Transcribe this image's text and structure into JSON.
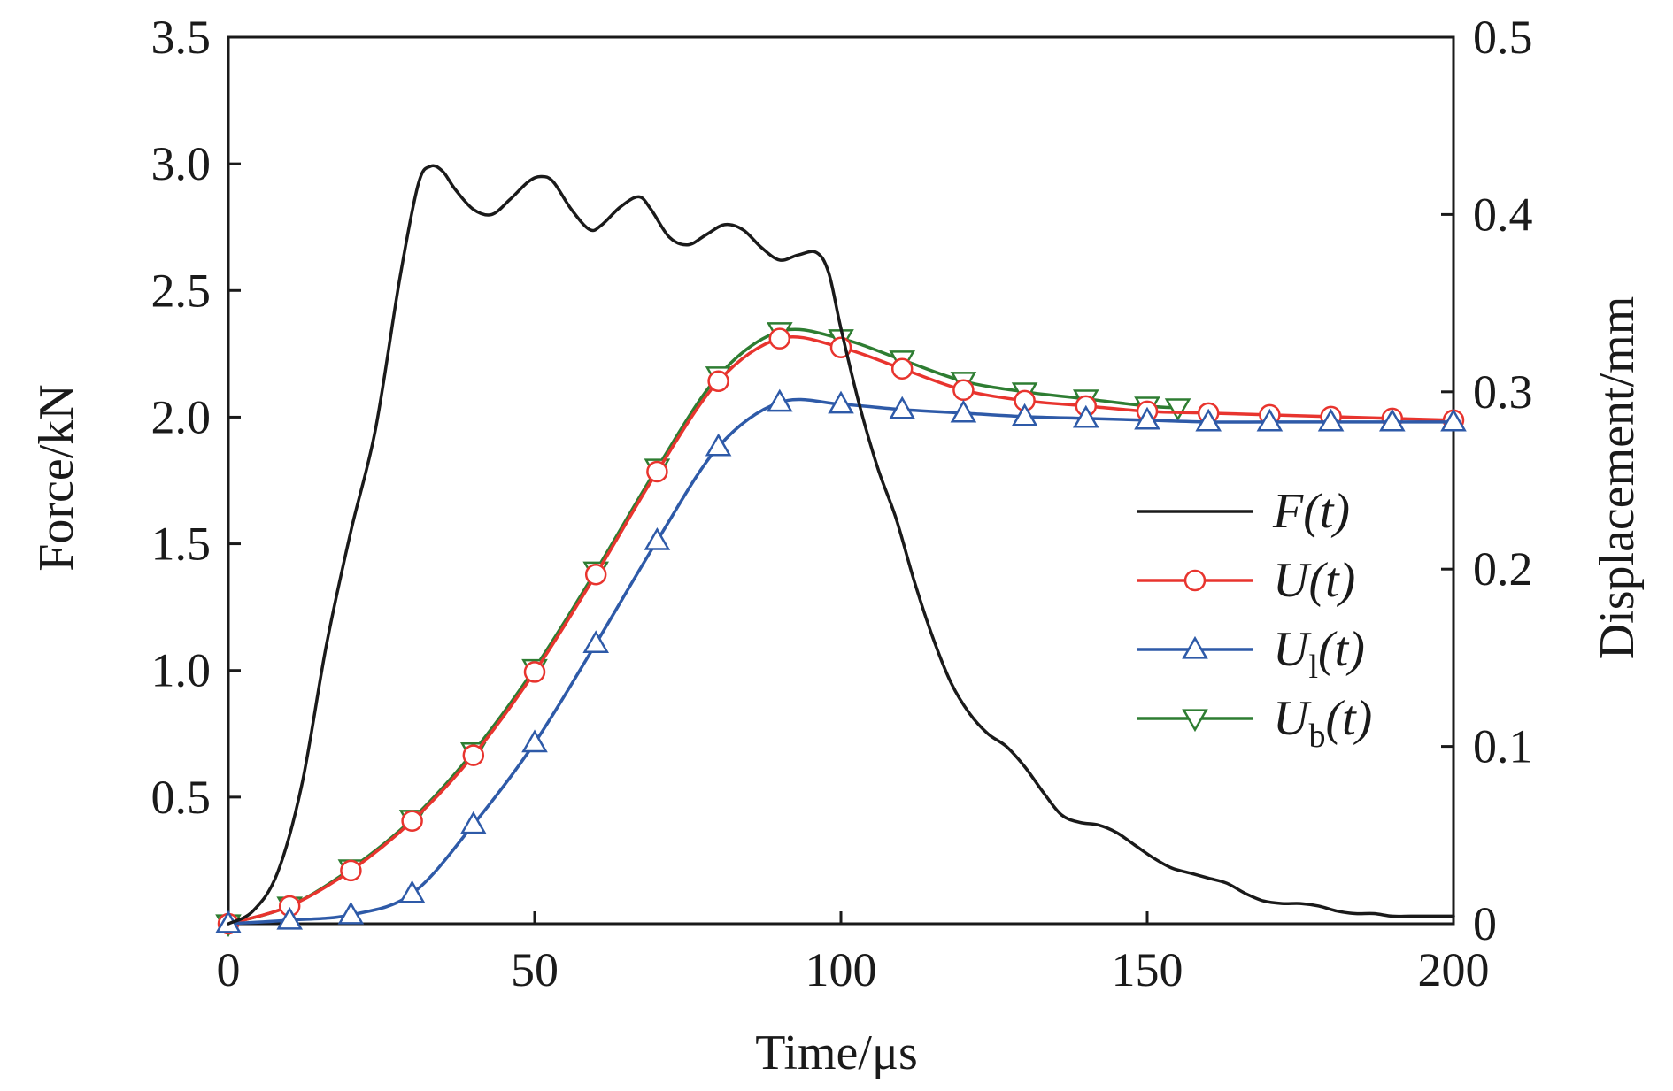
{
  "chart_data": {
    "type": "line",
    "xlabel": "Time/μs",
    "ylabel": "Force/kN",
    "ylabel_right": "Displacement/mm",
    "xlim": [
      0,
      200
    ],
    "ylim": [
      0,
      3.5
    ],
    "ylim_right": [
      0,
      0.5
    ],
    "x_ticks": [
      0,
      50,
      100,
      150,
      200
    ],
    "x_tick_labels": [
      "0",
      "50",
      "100",
      "150",
      "200"
    ],
    "y_ticks": [
      0.5,
      1.0,
      1.5,
      2.0,
      2.5,
      3.0,
      3.5
    ],
    "y_tick_labels": [
      "0.5",
      "1.0",
      "1.5",
      "2.0",
      "2.5",
      "3.0",
      "3.5"
    ],
    "y_right_ticks": [
      0,
      0.1,
      0.2,
      0.3,
      0.4,
      0.5
    ],
    "y_right_tick_labels": [
      "0",
      "0.1",
      "0.2",
      "0.3",
      "0.4",
      "0.5"
    ],
    "grid": false,
    "legend_position": "right-center",
    "series": [
      {
        "name": "F(t)",
        "label_main": "F",
        "label_sub": "",
        "label_tail": "(t)",
        "axis": "left",
        "color": "#1a1a1a",
        "marker": "none",
        "x": [
          0,
          4,
          8,
          12,
          16,
          20,
          24,
          28,
          31,
          33,
          35,
          37,
          40,
          43,
          46,
          49,
          51,
          53,
          56,
          59,
          61,
          64,
          67,
          69,
          72,
          75,
          78,
          81,
          84,
          87,
          90,
          93,
          96,
          98,
          100,
          103,
          106,
          109,
          112,
          115,
          118,
          121,
          124,
          127,
          130,
          133,
          136,
          139,
          142,
          145,
          148,
          151,
          154,
          157,
          160,
          163,
          166,
          169,
          172,
          175,
          178,
          181,
          184,
          187,
          190,
          193,
          196,
          200
        ],
        "y": [
          0.0,
          0.05,
          0.2,
          0.55,
          1.1,
          1.55,
          1.95,
          2.55,
          2.92,
          2.99,
          2.97,
          2.9,
          2.82,
          2.8,
          2.86,
          2.93,
          2.95,
          2.93,
          2.82,
          2.74,
          2.76,
          2.83,
          2.87,
          2.82,
          2.71,
          2.68,
          2.72,
          2.76,
          2.74,
          2.67,
          2.62,
          2.64,
          2.65,
          2.57,
          2.35,
          2.05,
          1.8,
          1.6,
          1.35,
          1.13,
          0.95,
          0.83,
          0.75,
          0.7,
          0.62,
          0.52,
          0.43,
          0.4,
          0.39,
          0.36,
          0.31,
          0.26,
          0.22,
          0.2,
          0.18,
          0.16,
          0.12,
          0.09,
          0.08,
          0.08,
          0.07,
          0.05,
          0.04,
          0.04,
          0.03,
          0.03,
          0.03,
          0.03
        ]
      },
      {
        "name": "U(t)",
        "label_main": "U",
        "label_sub": "",
        "label_tail": "(t)",
        "axis": "right",
        "color": "#e8342e",
        "marker": "circle",
        "x": [
          0,
          10,
          20,
          30,
          40,
          50,
          60,
          70,
          80,
          90,
          100,
          110,
          120,
          130,
          140,
          150,
          160,
          170,
          180,
          190,
          200
        ],
        "y": [
          0.0,
          0.01,
          0.03,
          0.058,
          0.095,
          0.142,
          0.197,
          0.255,
          0.306,
          0.33,
          0.325,
          0.313,
          0.301,
          0.295,
          0.292,
          0.289,
          0.288,
          0.287,
          0.286,
          0.285,
          0.284
        ]
      },
      {
        "name": "U1(t)",
        "label_main": "U",
        "label_sub": "l",
        "label_tail": "(t)",
        "axis": "right",
        "color": "#2e5aa8",
        "marker": "triangle-up",
        "x": [
          0,
          10,
          20,
          30,
          40,
          50,
          60,
          70,
          80,
          90,
          100,
          110,
          120,
          130,
          140,
          150,
          160,
          170,
          180,
          190,
          200
        ],
        "y": [
          0.0,
          0.002,
          0.005,
          0.017,
          0.056,
          0.102,
          0.158,
          0.216,
          0.269,
          0.294,
          0.293,
          0.29,
          0.288,
          0.286,
          0.285,
          0.284,
          0.283,
          0.283,
          0.283,
          0.283,
          0.283
        ]
      },
      {
        "name": "Ub(t)",
        "label_main": "U",
        "label_sub": "b",
        "label_tail": "(t)",
        "axis": "right",
        "color": "#2e7d32",
        "marker": "triangle-down",
        "x": [
          0,
          10,
          20,
          30,
          40,
          50,
          60,
          70,
          80,
          90,
          100,
          110,
          120,
          130,
          140,
          150,
          155
        ],
        "y": [
          0.0,
          0.01,
          0.031,
          0.059,
          0.097,
          0.144,
          0.199,
          0.257,
          0.309,
          0.334,
          0.33,
          0.318,
          0.306,
          0.3,
          0.296,
          0.292,
          0.291
        ]
      }
    ]
  }
}
